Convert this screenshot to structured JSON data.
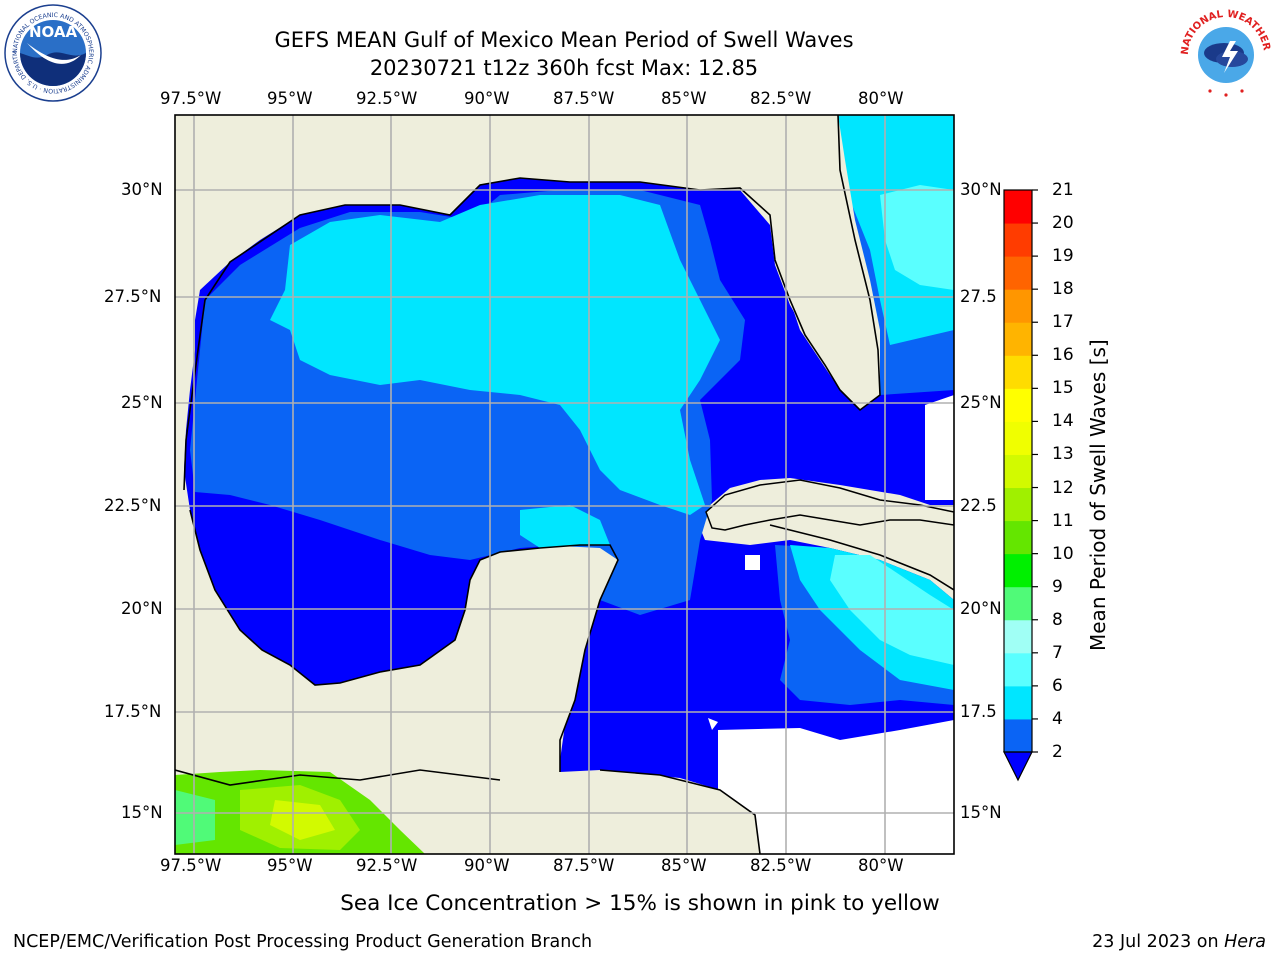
{
  "header": {
    "title_line1": "GEFS MEAN Gulf of Mexico Mean Period of Swell Waves",
    "title_line2": "20230721 t12z 360h fcst   Max: 12.85"
  },
  "logos": {
    "left": "noaa-logo",
    "right": "national-weather-service-logo",
    "left_text": "NATIONAL OCEANIC AND ATMOSPHERIC ADMINISTRATION · U.S. DEPARTMENT OF COMMERCE",
    "left_center_text": "NOAA",
    "right_text": "NATIONAL WEATHER SERVICE"
  },
  "map": {
    "lon_ticks_top": [
      "97.5°W",
      "95°W",
      "92.5°W",
      "90°W",
      "87.5°W",
      "85°W",
      "82.5°W",
      "80°W"
    ],
    "lon_ticks_bottom": [
      "97.5°W",
      "95°W",
      "92.5°W",
      "90°W",
      "87.5°W",
      "85°W",
      "82.5°W",
      "80°W"
    ],
    "lat_ticks_left": [
      "30°N",
      "27.5°N",
      "25°N",
      "22.5°N",
      "20°N",
      "17.5°N",
      "15°N"
    ],
    "lat_ticks_right": [
      "30°N",
      "27.5",
      "25°N",
      "22.5",
      "20°N",
      "17.5",
      "15°N"
    ],
    "colors": {
      "land": "#eeeedc",
      "ocean_nodata": "#ffffff",
      "grid": "#b0b0b0"
    }
  },
  "colorbar": {
    "title": "Mean Period of Swell Waves [s]",
    "levels": [
      "2",
      "4",
      "6",
      "7",
      "8",
      "9",
      "10",
      "11",
      "12",
      "13",
      "14",
      "15",
      "16",
      "17",
      "18",
      "19",
      "20",
      "21"
    ],
    "colors": [
      "#0a64f5",
      "#00e6ff",
      "#5affff",
      "#a0fff5",
      "#50fa78",
      "#00f000",
      "#64e600",
      "#a0f000",
      "#d2fa00",
      "#f0ff00",
      "#ffff00",
      "#ffdc00",
      "#ffb400",
      "#ff9600",
      "#ff6400",
      "#ff3c00",
      "#ff0000"
    ],
    "extend_color": "#0000ff"
  },
  "footer": {
    "note": "Sea Ice Concentration > 15% is shown in pink to yellow",
    "left": "NCEP/EMC/Verification Post Processing Product Generation Branch",
    "right_date": "23 Jul 2023 on ",
    "right_host": "Hera"
  }
}
